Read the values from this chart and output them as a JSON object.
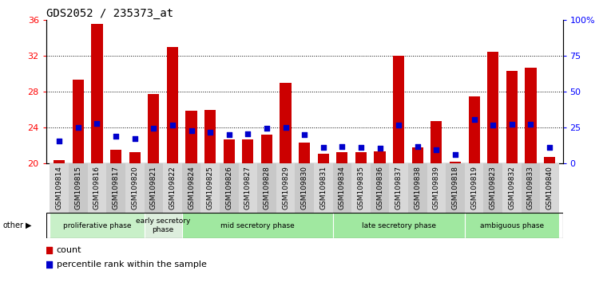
{
  "title": "GDS2052 / 235373_at",
  "samples": [
    "GSM109814",
    "GSM109815",
    "GSM109816",
    "GSM109817",
    "GSM109820",
    "GSM109821",
    "GSM109822",
    "GSM109824",
    "GSM109825",
    "GSM109826",
    "GSM109827",
    "GSM109828",
    "GSM109829",
    "GSM109830",
    "GSM109831",
    "GSM109834",
    "GSM109835",
    "GSM109836",
    "GSM109837",
    "GSM109838",
    "GSM109839",
    "GSM109818",
    "GSM109819",
    "GSM109823",
    "GSM109832",
    "GSM109833",
    "GSM109840"
  ],
  "count_values": [
    20.4,
    29.3,
    35.5,
    21.5,
    21.3,
    27.7,
    33.0,
    25.9,
    26.0,
    22.7,
    22.7,
    23.2,
    29.0,
    22.3,
    21.1,
    21.3,
    21.3,
    21.4,
    32.0,
    21.8,
    24.7,
    20.2,
    27.5,
    32.4,
    30.3,
    30.7,
    20.7
  ],
  "percentile_values": [
    22.5,
    24.0,
    24.5,
    23.0,
    22.8,
    23.9,
    24.3,
    23.7,
    23.5,
    23.2,
    23.3,
    23.9,
    24.0,
    23.2,
    21.8,
    21.9,
    21.8,
    21.7,
    24.3,
    21.9,
    21.5,
    21.0,
    24.9,
    24.3,
    24.4,
    24.4,
    21.8
  ],
  "baseline": 20,
  "ylim_left": [
    20,
    36
  ],
  "ylim_right": [
    0,
    100
  ],
  "left_ticks": [
    20,
    24,
    28,
    32,
    36
  ],
  "right_ticks": [
    0,
    25,
    50,
    75,
    100
  ],
  "right_tick_labels": [
    "0",
    "25",
    "50",
    "75",
    "100%"
  ],
  "phase_data": [
    {
      "label": "proliferative phase",
      "start": 0,
      "end": 4,
      "color": "#c8f0c8"
    },
    {
      "label": "early secretory\nphase",
      "start": 5,
      "end": 6,
      "color": "#ddeedd"
    },
    {
      "label": "mid secretory phase",
      "start": 7,
      "end": 14,
      "color": "#a0e8a0"
    },
    {
      "label": "late secretory phase",
      "start": 15,
      "end": 21,
      "color": "#a0e8a0"
    },
    {
      "label": "ambiguous phase",
      "start": 22,
      "end": 26,
      "color": "#a0e8a0"
    }
  ],
  "bar_color": "#cc0000",
  "dot_color": "#0000cc",
  "title_fontsize": 10,
  "tick_fontsize": 6.5,
  "phase_label_fontsize": 6.5
}
